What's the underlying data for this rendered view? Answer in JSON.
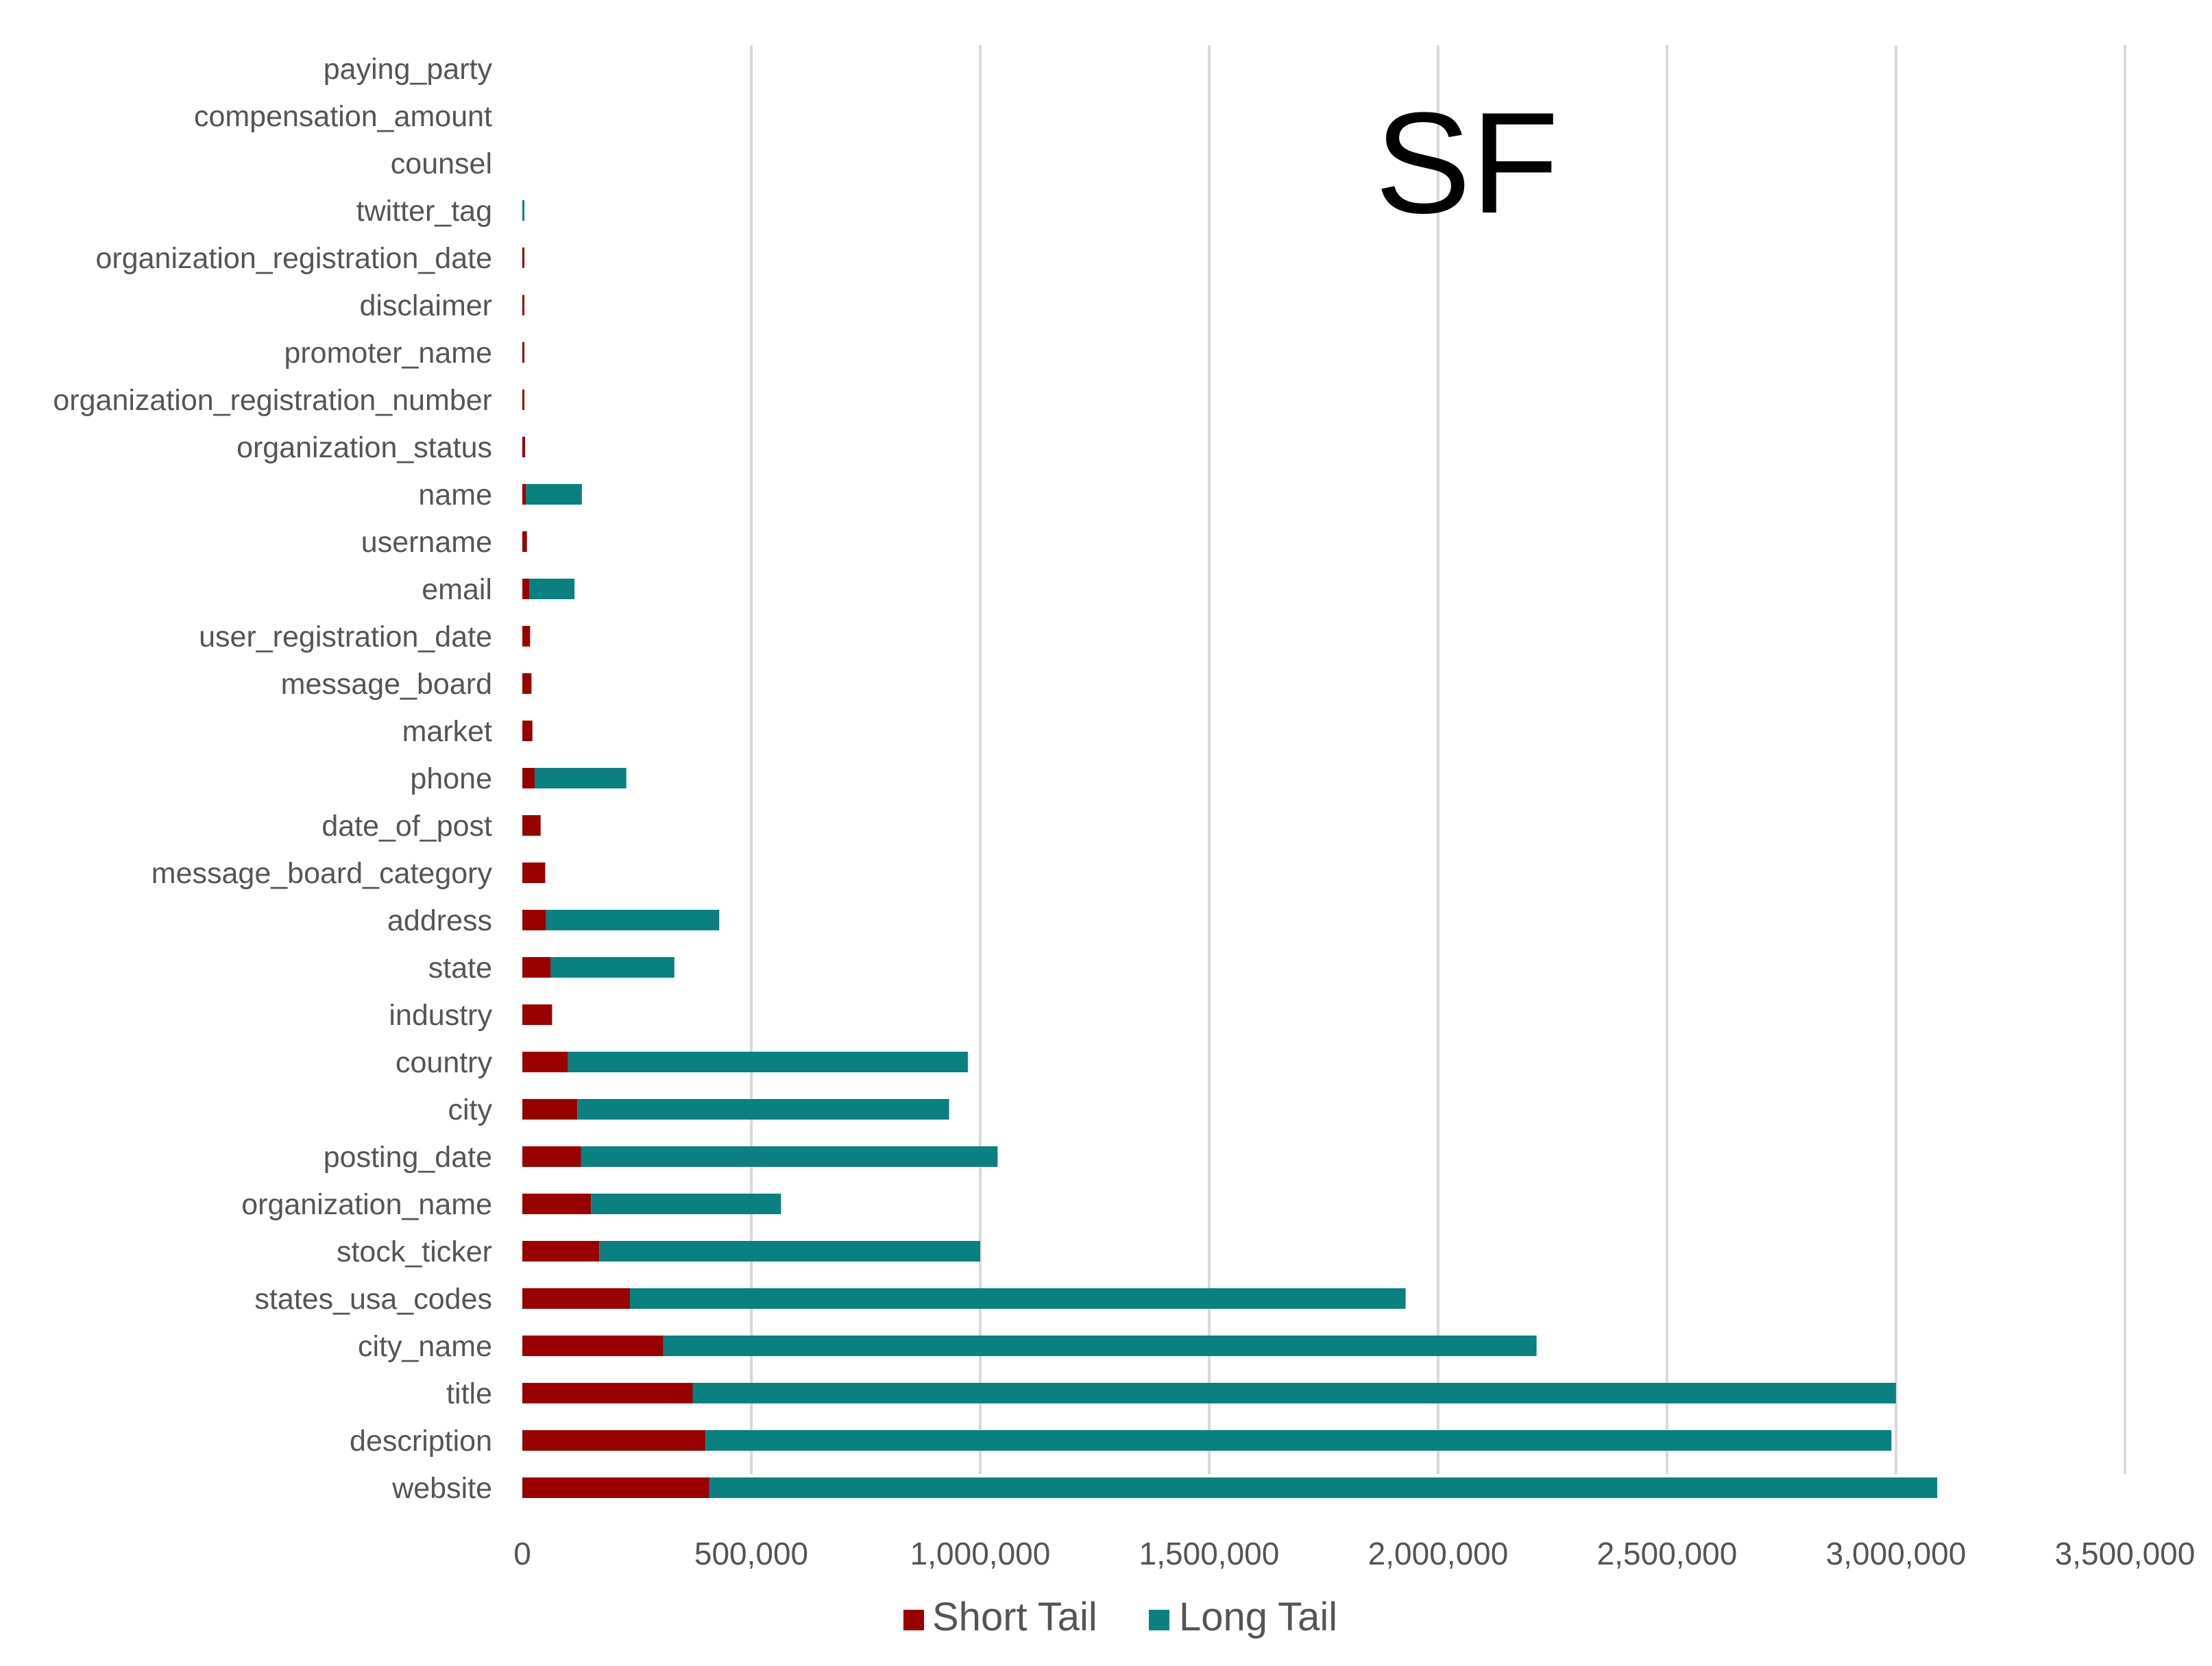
{
  "chart_data": {
    "type": "bar",
    "orientation": "horizontal",
    "stacked": true,
    "title": "SF",
    "xlabel": "",
    "ylabel": "",
    "xlim": [
      0,
      3500000
    ],
    "x_ticks": [
      0,
      500000,
      1000000,
      1500000,
      2000000,
      2500000,
      3000000,
      3500000
    ],
    "x_tick_labels": [
      "0",
      "500,000",
      "1,000,000",
      "1,500,000",
      "2,000,000",
      "2,500,000",
      "3,000,000",
      "3,500,000"
    ],
    "grid": true,
    "legend_position": "bottom",
    "categories": [
      "paying_party",
      "compensation_amount",
      "counsel",
      "twitter_tag",
      "organization_registration_date",
      "disclaimer",
      "promoter_name",
      "organization_registration_number",
      "organization_status",
      "name",
      "username",
      "email",
      "user_registration_date",
      "message_board",
      "market",
      "phone",
      "date_of_post",
      "message_board_category",
      "address",
      "state",
      "industry",
      "country",
      "city",
      "posting_date",
      "organization_name",
      "stock_ticker",
      "states_usa_codes",
      "city_name",
      "title",
      "description",
      "website"
    ],
    "series": [
      {
        "name": "Short Tail",
        "color": "#990000",
        "values": [
          0,
          0,
          0,
          0,
          4000,
          4000,
          4000,
          4000,
          6000,
          8000,
          10000,
          15000,
          17000,
          20000,
          22000,
          27000,
          40000,
          50000,
          52000,
          62000,
          65000,
          100000,
          120000,
          128000,
          150000,
          168000,
          235000,
          308000,
          372000,
          400000,
          408000
        ]
      },
      {
        "name": "Long Tail",
        "color": "#0a8080",
        "values": [
          0,
          0,
          0,
          4000,
          0,
          0,
          0,
          0,
          0,
          122000,
          0,
          99000,
          0,
          0,
          0,
          200000,
          0,
          0,
          378000,
          270000,
          0,
          873000,
          812000,
          910000,
          415000,
          832000,
          1694000,
          1907000,
          2628000,
          2590000,
          2682000
        ]
      }
    ]
  }
}
